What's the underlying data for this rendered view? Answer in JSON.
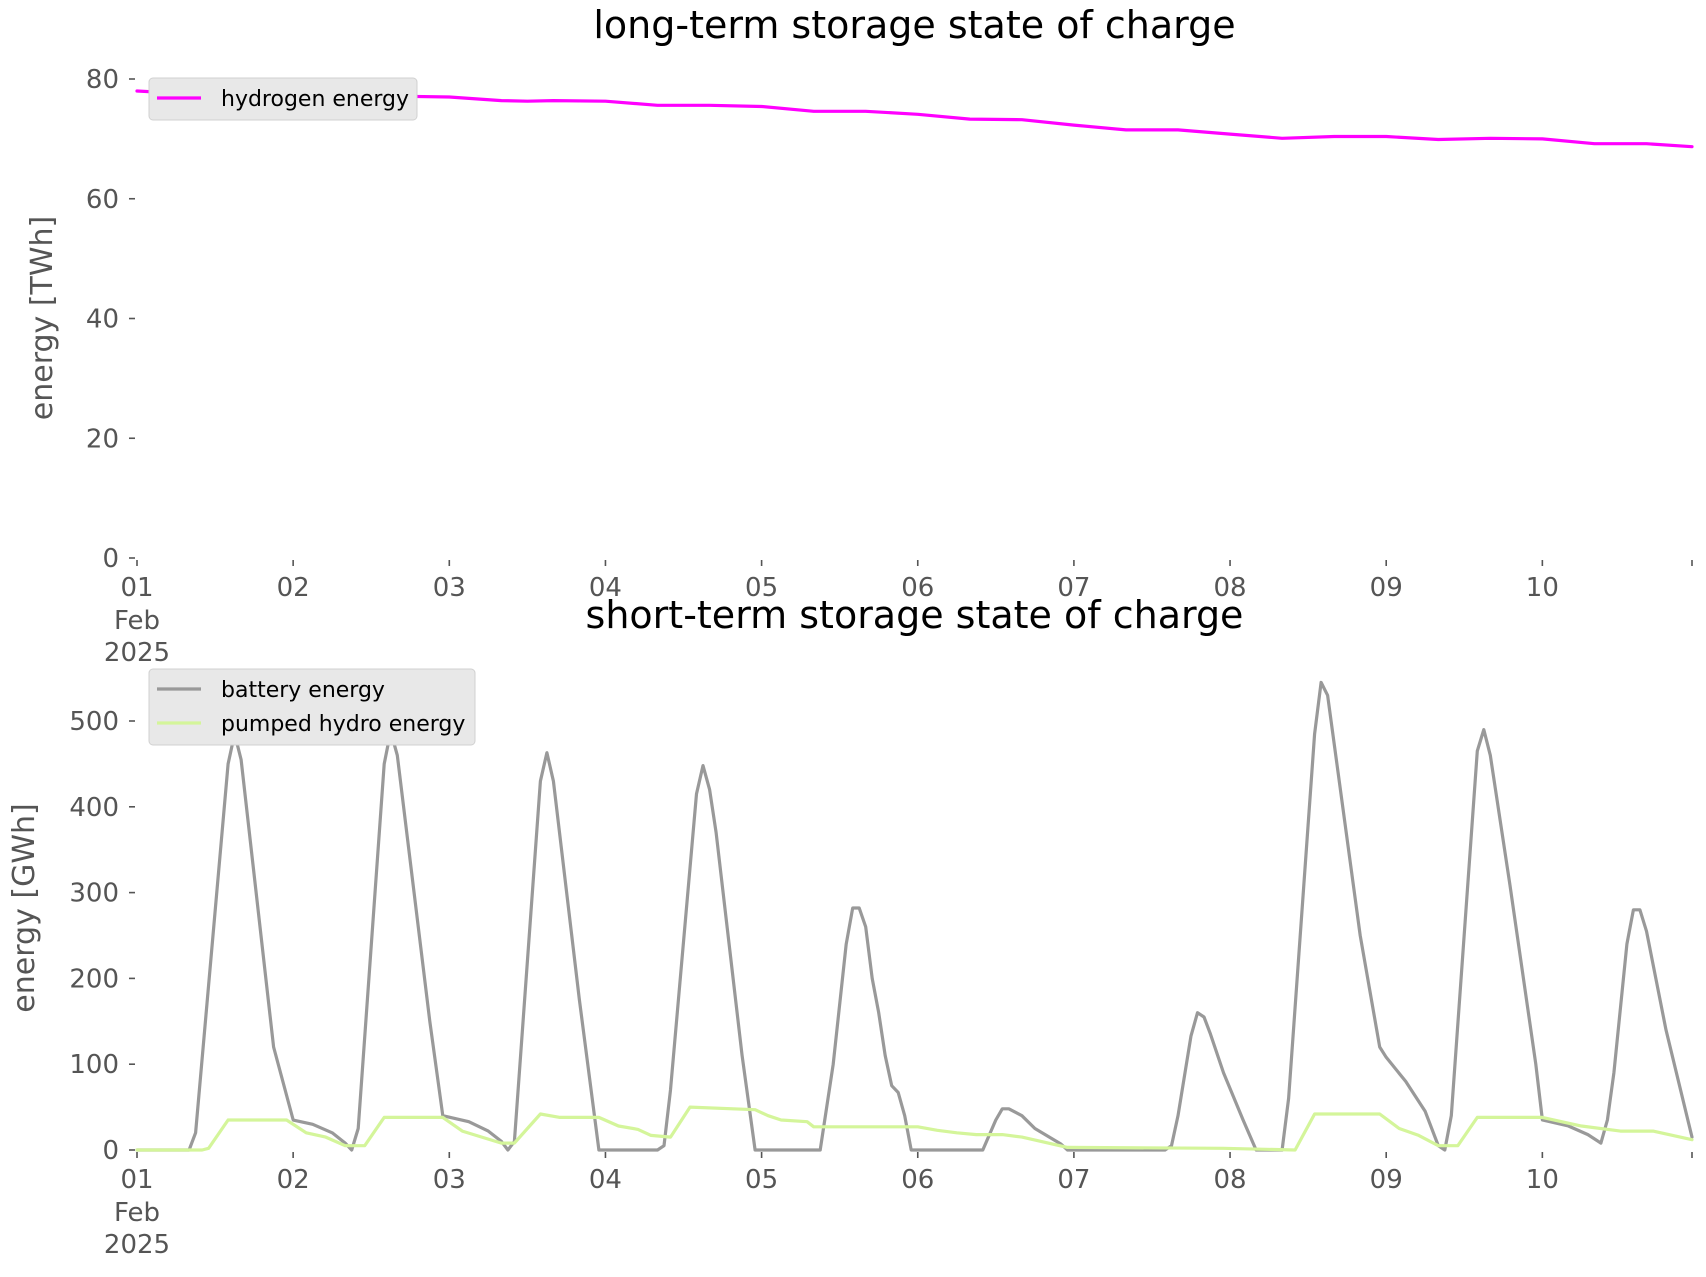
{
  "chart_data": [
    {
      "type": "line",
      "title": "long-term storage state of charge",
      "xlabel": "",
      "ylabel": "energy [TWh]",
      "x_unit": "days",
      "xlim": [
        "2025-02-01 00:00",
        "2025-02-10 23:00"
      ],
      "ylim": [
        0,
        80
      ],
      "yticks": [
        "0",
        "20",
        "40",
        "60",
        "80"
      ],
      "xticks": [
        "01",
        "02",
        "03",
        "04",
        "05",
        "06",
        "07",
        "08",
        "09",
        "10"
      ],
      "xtick_sub": [
        "Feb",
        "2025"
      ],
      "grid": false,
      "legend_position": "top-left",
      "series": [
        {
          "name": "hydrogen energy",
          "color": "#ff00ff",
          "points": [
            [
              "2025-02-01 00:00",
              78.0
            ],
            [
              "2025-02-01 12:00",
              77.3
            ],
            [
              "2025-02-02 00:00",
              77.3
            ],
            [
              "2025-02-02 12:00",
              77.2
            ],
            [
              "2025-02-03 00:00",
              77.0
            ],
            [
              "2025-02-03 08:00",
              76.4
            ],
            [
              "2025-02-03 12:00",
              76.3
            ],
            [
              "2025-02-03 16:00",
              76.4
            ],
            [
              "2025-02-04 00:00",
              76.3
            ],
            [
              "2025-02-04 08:00",
              75.6
            ],
            [
              "2025-02-04 16:00",
              75.6
            ],
            [
              "2025-02-05 00:00",
              75.4
            ],
            [
              "2025-02-05 08:00",
              74.6
            ],
            [
              "2025-02-05 16:00",
              74.6
            ],
            [
              "2025-02-06 00:00",
              74.1
            ],
            [
              "2025-02-06 08:00",
              73.3
            ],
            [
              "2025-02-06 16:00",
              73.2
            ],
            [
              "2025-02-07 00:00",
              72.3
            ],
            [
              "2025-02-07 08:00",
              71.5
            ],
            [
              "2025-02-07 16:00",
              71.5
            ],
            [
              "2025-02-08 00:00",
              70.8
            ],
            [
              "2025-02-08 08:00",
              70.1
            ],
            [
              "2025-02-08 16:00",
              70.4
            ],
            [
              "2025-02-09 00:00",
              70.4
            ],
            [
              "2025-02-09 08:00",
              69.9
            ],
            [
              "2025-02-09 16:00",
              70.1
            ],
            [
              "2025-02-10 00:00",
              70.0
            ],
            [
              "2025-02-10 08:00",
              69.2
            ],
            [
              "2025-02-10 16:00",
              69.2
            ],
            [
              "2025-02-10 23:00",
              68.7
            ]
          ]
        }
      ]
    },
    {
      "type": "line",
      "title": "short-term storage state of charge",
      "xlabel": "",
      "ylabel": "energy [GWh]",
      "x_unit": "days",
      "xlim": [
        "2025-02-01 00:00",
        "2025-02-10 23:00"
      ],
      "ylim": [
        0,
        560
      ],
      "yticks": [
        "0",
        "100",
        "200",
        "300",
        "400",
        "500"
      ],
      "xticks": [
        "01",
        "02",
        "03",
        "04",
        "05",
        "06",
        "07",
        "08",
        "09",
        "10"
      ],
      "xtick_sub": [
        "Feb",
        "2025"
      ],
      "grid": false,
      "legend_position": "top-left",
      "series": [
        {
          "name": "battery energy",
          "color": "#999999",
          "points": [
            [
              "2025-02-01 00:00",
              0
            ],
            [
              "2025-02-01 08:00",
              0
            ],
            [
              "2025-02-01 09:00",
              20
            ],
            [
              "2025-02-01 14:00",
              450
            ],
            [
              "2025-02-01 15:00",
              485
            ],
            [
              "2025-02-01 16:00",
              455
            ],
            [
              "2025-02-01 21:00",
              120
            ],
            [
              "2025-02-02 00:00",
              35
            ],
            [
              "2025-02-02 03:00",
              30
            ],
            [
              "2025-02-02 06:00",
              20
            ],
            [
              "2025-02-02 08:00",
              8
            ],
            [
              "2025-02-02 09:00",
              0
            ],
            [
              "2025-02-02 10:00",
              25
            ],
            [
              "2025-02-02 14:00",
              450
            ],
            [
              "2025-02-02 15:00",
              488
            ],
            [
              "2025-02-02 16:00",
              460
            ],
            [
              "2025-02-02 21:00",
              150
            ],
            [
              "2025-02-02 23:00",
              40
            ],
            [
              "2025-02-03 03:00",
              33
            ],
            [
              "2025-02-03 06:00",
              22
            ],
            [
              "2025-02-03 08:00",
              10
            ],
            [
              "2025-02-03 09:00",
              0
            ],
            [
              "2025-02-03 10:00",
              10
            ],
            [
              "2025-02-03 14:00",
              430
            ],
            [
              "2025-02-03 15:00",
              463
            ],
            [
              "2025-02-03 16:00",
              430
            ],
            [
              "2025-02-03 20:00",
              175
            ],
            [
              "2025-02-03 23:00",
              0
            ],
            [
              "2025-02-04 08:00",
              0
            ],
            [
              "2025-02-04 09:00",
              5
            ],
            [
              "2025-02-04 10:00",
              70
            ],
            [
              "2025-02-04 14:00",
              415
            ],
            [
              "2025-02-04 15:00",
              448
            ],
            [
              "2025-02-04 16:00",
              420
            ],
            [
              "2025-02-04 17:00",
              370
            ],
            [
              "2025-02-04 21:00",
              110
            ],
            [
              "2025-02-04 23:00",
              0
            ],
            [
              "2025-02-05 09:00",
              0
            ],
            [
              "2025-02-05 11:00",
              100
            ],
            [
              "2025-02-05 13:00",
              240
            ],
            [
              "2025-02-05 14:00",
              282
            ],
            [
              "2025-02-05 15:00",
              282
            ],
            [
              "2025-02-05 16:00",
              260
            ],
            [
              "2025-02-05 17:00",
              200
            ],
            [
              "2025-02-05 18:00",
              160
            ],
            [
              "2025-02-05 19:00",
              110
            ],
            [
              "2025-02-05 20:00",
              75
            ],
            [
              "2025-02-05 21:00",
              67
            ],
            [
              "2025-02-05 22:00",
              40
            ],
            [
              "2025-02-05 23:00",
              0
            ],
            [
              "2025-02-06 10:00",
              0
            ],
            [
              "2025-02-06 12:00",
              35
            ],
            [
              "2025-02-06 13:00",
              48
            ],
            [
              "2025-02-06 14:00",
              48
            ],
            [
              "2025-02-06 16:00",
              40
            ],
            [
              "2025-02-06 18:00",
              25
            ],
            [
              "2025-02-06 22:00",
              7
            ],
            [
              "2025-02-06 23:00",
              0
            ],
            [
              "2025-02-07 14:00",
              0
            ],
            [
              "2025-02-07 15:00",
              5
            ],
            [
              "2025-02-07 16:00",
              40
            ],
            [
              "2025-02-07 18:00",
              133
            ],
            [
              "2025-02-07 19:00",
              160
            ],
            [
              "2025-02-07 20:00",
              155
            ],
            [
              "2025-02-07 21:00",
              135
            ],
            [
              "2025-02-07 23:00",
              90
            ],
            [
              "2025-02-08 02:00",
              35
            ],
            [
              "2025-02-08 04:00",
              0
            ],
            [
              "2025-02-08 08:00",
              0
            ],
            [
              "2025-02-08 09:00",
              60
            ],
            [
              "2025-02-08 13:00",
              485
            ],
            [
              "2025-02-08 14:00",
              545
            ],
            [
              "2025-02-08 15:00",
              530
            ],
            [
              "2025-02-08 20:00",
              250
            ],
            [
              "2025-02-08 23:00",
              120
            ],
            [
              "2025-02-09 00:00",
              108
            ],
            [
              "2025-02-09 03:00",
              80
            ],
            [
              "2025-02-09 06:00",
              45
            ],
            [
              "2025-02-09 08:00",
              5
            ],
            [
              "2025-02-09 09:00",
              0
            ],
            [
              "2025-02-09 10:00",
              40
            ],
            [
              "2025-02-09 14:00",
              465
            ],
            [
              "2025-02-09 15:00",
              490
            ],
            [
              "2025-02-09 16:00",
              460
            ],
            [
              "2025-02-09 19:00",
              310
            ],
            [
              "2025-02-09 23:00",
              100
            ],
            [
              "2025-02-10 00:00",
              35
            ],
            [
              "2025-02-10 04:00",
              28
            ],
            [
              "2025-02-10 07:00",
              18
            ],
            [
              "2025-02-10 09:00",
              8
            ],
            [
              "2025-02-10 10:00",
              35
            ],
            [
              "2025-02-10 11:00",
              90
            ],
            [
              "2025-02-10 13:00",
              240
            ],
            [
              "2025-02-10 14:00",
              280
            ],
            [
              "2025-02-10 15:00",
              280
            ],
            [
              "2025-02-10 16:00",
              255
            ],
            [
              "2025-02-10 19:00",
              140
            ],
            [
              "2025-02-10 23:00",
              15
            ]
          ]
        },
        {
          "name": "pumped hydro energy",
          "color": "#d4f59a",
          "points": [
            [
              "2025-02-01 00:00",
              0
            ],
            [
              "2025-02-01 10:00",
              0
            ],
            [
              "2025-02-01 11:00",
              2
            ],
            [
              "2025-02-01 14:00",
              35
            ],
            [
              "2025-02-01 23:00",
              35
            ],
            [
              "2025-02-02 02:00",
              20
            ],
            [
              "2025-02-02 05:00",
              15
            ],
            [
              "2025-02-02 08:00",
              5
            ],
            [
              "2025-02-02 11:00",
              5
            ],
            [
              "2025-02-02 14:00",
              38
            ],
            [
              "2025-02-02 23:00",
              38
            ],
            [
              "2025-02-03 02:00",
              22
            ],
            [
              "2025-02-03 05:00",
              15
            ],
            [
              "2025-02-03 08:00",
              8
            ],
            [
              "2025-02-03 10:00",
              8
            ],
            [
              "2025-02-03 14:00",
              42
            ],
            [
              "2025-02-03 17:00",
              38
            ],
            [
              "2025-02-03 23:00",
              38
            ],
            [
              "2025-02-04 02:00",
              28
            ],
            [
              "2025-02-04 05:00",
              24
            ],
            [
              "2025-02-04 07:00",
              17
            ],
            [
              "2025-02-04 10:00",
              15
            ],
            [
              "2025-02-04 13:00",
              50
            ],
            [
              "2025-02-04 23:00",
              47
            ],
            [
              "2025-02-05 01:00",
              40
            ],
            [
              "2025-02-05 03:00",
              35
            ],
            [
              "2025-02-05 07:00",
              33
            ],
            [
              "2025-02-05 08:00",
              27
            ],
            [
              "2025-02-06 00:00",
              27
            ],
            [
              "2025-02-06 03:00",
              23
            ],
            [
              "2025-02-06 06:00",
              20
            ],
            [
              "2025-02-06 09:00",
              18
            ],
            [
              "2025-02-06 13:00",
              18
            ],
            [
              "2025-02-06 16:00",
              15
            ],
            [
              "2025-02-06 23:00",
              3
            ],
            [
              "2025-02-07 23:00",
              2
            ],
            [
              "2025-02-08 10:00",
              0
            ],
            [
              "2025-02-08 13:00",
              42
            ],
            [
              "2025-02-08 23:00",
              42
            ],
            [
              "2025-02-09 02:00",
              25
            ],
            [
              "2025-02-09 05:00",
              17
            ],
            [
              "2025-02-09 08:00",
              5
            ],
            [
              "2025-02-09 11:00",
              5
            ],
            [
              "2025-02-09 14:00",
              38
            ],
            [
              "2025-02-10 00:00",
              38
            ],
            [
              "2025-02-10 06:00",
              28
            ],
            [
              "2025-02-10 12:00",
              22
            ],
            [
              "2025-02-10 17:00",
              22
            ],
            [
              "2025-02-10 23:00",
              12
            ]
          ]
        }
      ]
    }
  ]
}
